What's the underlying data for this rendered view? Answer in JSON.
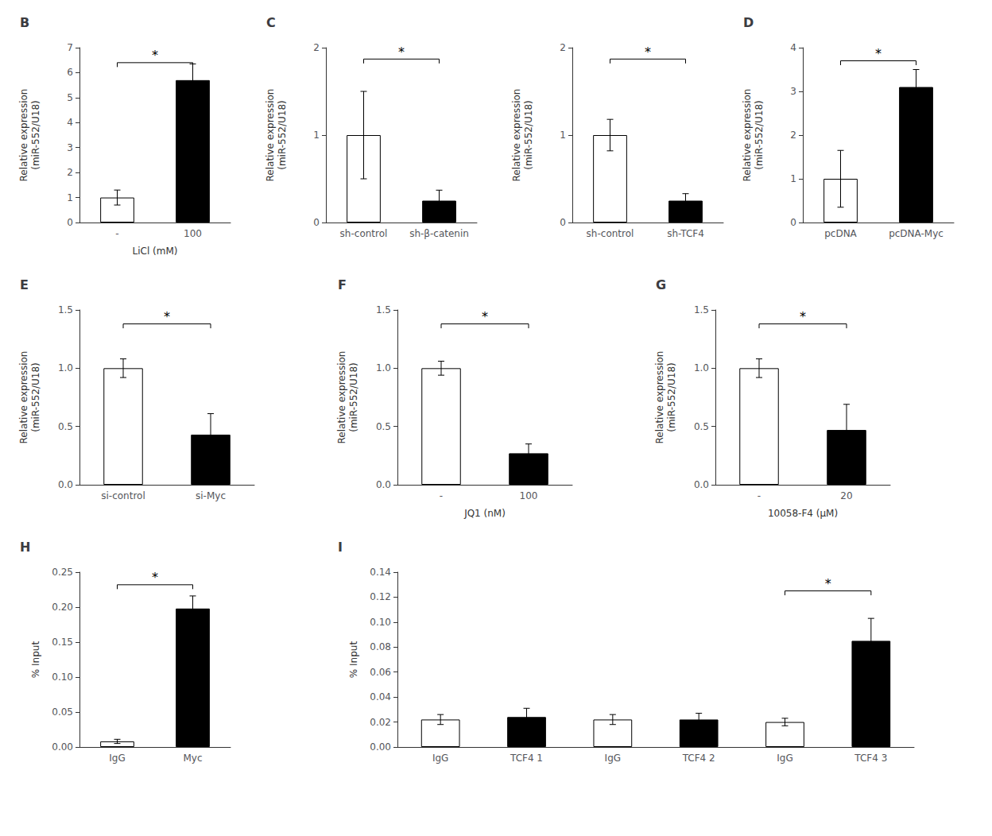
{
  "chart_data": [
    {
      "type": "bar",
      "title": "B",
      "categories": [
        "-",
        "100"
      ],
      "xlabel": "LiCl (mM)",
      "ylabel": "Relative expression\n(miR-552/U18)",
      "values": [
        1.0,
        5.7
      ],
      "errors": [
        0.3,
        0.65
      ],
      "colors": [
        "white",
        "black"
      ],
      "ylim": [
        0,
        7
      ],
      "yticks": [
        0,
        1,
        2,
        3,
        4,
        5,
        6,
        7
      ],
      "grid": false,
      "annotations": [
        {
          "text": "*",
          "y": 6.4,
          "span": [
            0,
            1
          ]
        }
      ]
    },
    {
      "type": "bar",
      "title": "C",
      "categories": [
        "sh-control",
        "sh-β-catenin"
      ],
      "ylabel": "Relative expression\n(miR-552/U18)",
      "values": [
        1.0,
        0.25
      ],
      "errors": [
        0.5,
        0.12
      ],
      "colors": [
        "white",
        "black"
      ],
      "ylim": [
        0,
        2
      ],
      "yticks": [
        0,
        1,
        2
      ],
      "grid": false,
      "annotations": [
        {
          "text": "*",
          "y": 1.87,
          "span": [
            0,
            1
          ]
        }
      ]
    },
    {
      "type": "bar",
      "categories": [
        "sh-control",
        "sh-TCF4"
      ],
      "ylabel": "Relative expression\n(miR-552/U18)",
      "values": [
        1.0,
        0.25
      ],
      "errors": [
        0.18,
        0.08
      ],
      "colors": [
        "white",
        "black"
      ],
      "ylim": [
        0,
        2
      ],
      "yticks": [
        0,
        1,
        2
      ],
      "grid": false,
      "annotations": [
        {
          "text": "*",
          "y": 1.87,
          "span": [
            0,
            1
          ]
        }
      ]
    },
    {
      "type": "bar",
      "title": "D",
      "categories": [
        "pcDNA",
        "pcDNA-Myc"
      ],
      "ylabel": "Relative expression\n(miR-552/U18)",
      "values": [
        1.0,
        3.1
      ],
      "errors": [
        0.65,
        0.4
      ],
      "colors": [
        "white",
        "black"
      ],
      "ylim": [
        0,
        4
      ],
      "yticks": [
        0,
        1,
        2,
        3,
        4
      ],
      "grid": false,
      "annotations": [
        {
          "text": "*",
          "y": 3.7,
          "span": [
            0,
            1
          ]
        }
      ]
    },
    {
      "type": "bar",
      "title": "E",
      "categories": [
        "si-control",
        "si-Myc"
      ],
      "ylabel": "Relative expression\n(miR-552/U18)",
      "values": [
        1.0,
        0.43
      ],
      "errors": [
        0.08,
        0.18
      ],
      "colors": [
        "white",
        "black"
      ],
      "ylim": [
        0,
        1.5
      ],
      "yticks": [
        {
          "value": 0,
          "label": "0.0"
        },
        0.5,
        {
          "value": 1,
          "label": "1.0"
        },
        1.5
      ],
      "grid": false,
      "annotations": [
        {
          "text": "*",
          "y": 1.38,
          "span": [
            0,
            1
          ]
        }
      ]
    },
    {
      "type": "bar",
      "title": "F",
      "categories": [
        "-",
        "100"
      ],
      "xlabel": "JQ1 (nM)",
      "ylabel": "Relative expression\n(miR-552/U18)",
      "values": [
        1.0,
        0.27
      ],
      "errors": [
        0.06,
        0.08
      ],
      "colors": [
        "white",
        "black"
      ],
      "ylim": [
        0,
        1.5
      ],
      "yticks": [
        {
          "value": 0,
          "label": "0.0"
        },
        0.5,
        {
          "value": 1,
          "label": "1.0"
        },
        1.5
      ],
      "grid": false,
      "annotations": [
        {
          "text": "*",
          "y": 1.38,
          "span": [
            0,
            1
          ]
        }
      ]
    },
    {
      "type": "bar",
      "title": "G",
      "categories": [
        "-",
        "20"
      ],
      "xlabel": "10058-F4 (μM)",
      "ylabel": "Relative expression\n(miR-552/U18)",
      "values": [
        1.0,
        0.47
      ],
      "errors": [
        0.08,
        0.22
      ],
      "colors": [
        "white",
        "black"
      ],
      "ylim": [
        0,
        1.5
      ],
      "yticks": [
        {
          "value": 0,
          "label": "0.0"
        },
        0.5,
        {
          "value": 1,
          "label": "1.0"
        },
        1.5
      ],
      "grid": false,
      "annotations": [
        {
          "text": "*",
          "y": 1.38,
          "span": [
            0,
            1
          ]
        }
      ]
    },
    {
      "type": "bar",
      "title": "H",
      "categories": [
        "IgG",
        "Myc"
      ],
      "ylabel": "% Input",
      "values": [
        0.008,
        0.198
      ],
      "errors": [
        0.003,
        0.018
      ],
      "colors": [
        "white",
        "black"
      ],
      "ylim": [
        0,
        0.25
      ],
      "yticks": [
        {
          "value": 0,
          "label": "0.00"
        },
        0.05,
        {
          "value": 0.1,
          "label": "0.10"
        },
        0.15,
        {
          "value": 0.2,
          "label": "0.20"
        },
        0.25
      ],
      "grid": false,
      "annotations": [
        {
          "text": "*",
          "y": 0.232,
          "span": [
            0,
            1
          ]
        }
      ]
    },
    {
      "type": "bar",
      "title": "I",
      "categories": [
        "IgG",
        "TCF4 1",
        "IgG",
        "TCF4 2",
        "IgG",
        "TCF4 3"
      ],
      "ylabel": "% Input",
      "values": [
        0.022,
        0.024,
        0.022,
        0.022,
        0.02,
        0.085
      ],
      "errors": [
        0.004,
        0.007,
        0.004,
        0.005,
        0.003,
        0.018
      ],
      "colors": [
        "white",
        "black",
        "white",
        "black",
        "white",
        "black"
      ],
      "ylim": [
        0,
        0.14
      ],
      "yticks": [
        {
          "value": 0,
          "label": "0.00"
        },
        0.02,
        0.04,
        0.06,
        0.08,
        {
          "value": 0.1,
          "label": "0.10"
        },
        0.12,
        0.14
      ],
      "grid": false,
      "annotations": [
        {
          "text": "*",
          "y": 0.125,
          "span": [
            4,
            5
          ]
        }
      ]
    }
  ]
}
